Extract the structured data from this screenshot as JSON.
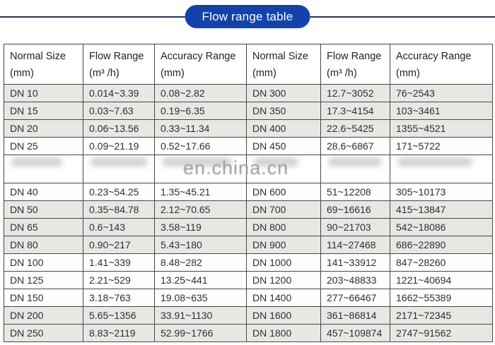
{
  "banner": {
    "label": "Flow range table"
  },
  "watermark": {
    "text": "en.china.cn"
  },
  "colors": {
    "banner-blue": "#1243ad",
    "rule-navy": "#253454",
    "row-gray": "#e7e7e4",
    "row-white": "#fdfdfd",
    "border-dark": "#474747",
    "watermark-gray": "#9c9c9c"
  },
  "table": {
    "headers": [
      {
        "title": "Normal Size",
        "unit": "(mm)"
      },
      {
        "title": "Flow Range",
        "unit": "(m³ /h)"
      },
      {
        "title": "Accuracy Range",
        "unit": "(mm)"
      },
      {
        "title": "Normal Size",
        "unit": "(mm)"
      },
      {
        "title": "Flow Range",
        "unit": "(m³ /h)"
      },
      {
        "title": "Accuracy Range",
        "unit": "(mm)"
      }
    ],
    "rows": [
      {
        "shade": "gray",
        "cells": [
          "DN 10",
          "0.014~3.39",
          "0.08~2.82",
          "DN 300",
          "12.7~3052",
          "76~2543"
        ]
      },
      {
        "shade": "gray",
        "cells": [
          "DN 15",
          "0.03~7.63",
          "0.19~6.35",
          "DN 350",
          "17.3~4154",
          "103~3461"
        ]
      },
      {
        "shade": "gray",
        "cells": [
          "DN 20",
          "0.06~13.56",
          "0.33~11.34",
          "DN 400",
          "22.6~5425",
          "1355~4521"
        ]
      },
      {
        "shade": "white",
        "cells": [
          "DN 25",
          "0.09~21.19",
          "0.52~17.66",
          "DN 450",
          "28.6~6867",
          "171~5722"
        ]
      },
      {
        "shade": "white",
        "obscured": true,
        "cells": [
          "",
          "",
          "",
          "",
          "",
          ""
        ]
      },
      {
        "shade": "white",
        "cells": [
          "DN 40",
          "0.23~54.25",
          "1.35~45.21",
          "DN 600",
          "51~12208",
          "305~10173"
        ]
      },
      {
        "shade": "gray",
        "cells": [
          "DN 50",
          "0.35~84.78",
          "2.12~70.65",
          "DN 700",
          "69~16616",
          "415~13847"
        ]
      },
      {
        "shade": "gray",
        "cells": [
          "DN 65",
          "0.6~143",
          "3.58~119",
          "DN 800",
          "90~21703",
          "542~18086"
        ]
      },
      {
        "shade": "gray",
        "cells": [
          "DN 80",
          "0.90~217",
          "5.43~180",
          "DN 900",
          "114~27468",
          "686~22890"
        ]
      },
      {
        "shade": "white",
        "cells": [
          "DN 100",
          "1.41~339",
          "8.48~282",
          "DN 1000",
          "141~33912",
          "847~28260"
        ]
      },
      {
        "shade": "white",
        "cells": [
          "DN 125",
          "2.21~529",
          "13.25~441",
          "DN 1200",
          "203~48833",
          "1221~40694"
        ]
      },
      {
        "shade": "white",
        "cells": [
          "DN 150",
          "3.18~763",
          "19.08~635",
          "DN 1400",
          "277~66467",
          "1662~55389"
        ]
      },
      {
        "shade": "gray",
        "cells": [
          "DN 200",
          "5.65~1356",
          "33.91~1130",
          "DN 1600",
          "361~86814",
          "2171~72345"
        ]
      },
      {
        "shade": "gray",
        "cells": [
          "DN 250",
          "8.83~2119",
          "52.99~1766",
          "DN 1800",
          "457~109874",
          "2747~91562"
        ]
      }
    ]
  }
}
